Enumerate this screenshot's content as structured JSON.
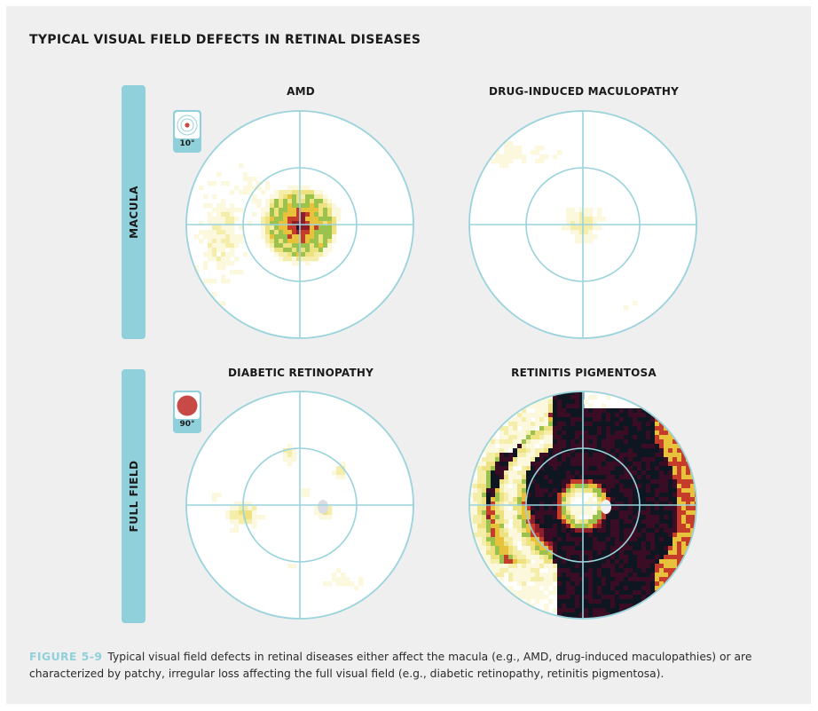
{
  "title": "TYPICAL VISUAL FIELD DEFECTS IN RETINAL DISEASES",
  "rows": [
    {
      "label": "MACULA",
      "badge": "10°"
    },
    {
      "label": "FULL FIELD",
      "badge": "90°"
    }
  ],
  "panels": [
    {
      "title": "AMD",
      "pattern": "central-scotoma"
    },
    {
      "title": "DRUG-INDUCED MACULOPATHY",
      "pattern": "mild-central-loss"
    },
    {
      "title": "DIABETIC RETINOPATHY",
      "pattern": "patchy-loss"
    },
    {
      "title": "RETINITIS PIGMENTOSA",
      "pattern": "ring-scotoma"
    }
  ],
  "caption": {
    "figure_label": "FIGURE 5-9",
    "text": "Typical visual field defects in retinal diseases either affect the macula (e.g., AMD, drug-induced maculopathies) or are characterized by patchy, irregular loss affecting the full visual field (e.g., diabetic retinopathy, retinitis pigmentosa)."
  },
  "colors": {
    "background": "#efefef",
    "accent": "#8fd0db",
    "grid_lines": "#9ad3dc",
    "severity_scale": [
      "#fbf8dd",
      "#f5eeaa",
      "#eee17f",
      "#9cc24e",
      "#e8c23b",
      "#c63c2a",
      "#8e1d2c",
      "#3a0d25",
      "#0e1622"
    ]
  },
  "icons": {
    "macula_badge": "target-rings-icon",
    "full_field_badge": "red-disc-icon"
  }
}
